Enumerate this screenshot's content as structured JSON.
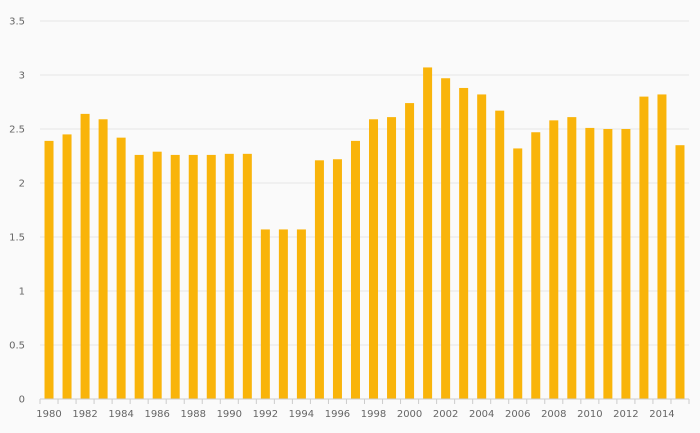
{
  "chart_data": {
    "type": "bar",
    "categories": [
      "1980",
      "1981",
      "1982",
      "1983",
      "1984",
      "1985",
      "1986",
      "1987",
      "1988",
      "1989",
      "1990",
      "1991",
      "1992",
      "1993",
      "1994",
      "1995",
      "1996",
      "1997",
      "1998",
      "1999",
      "2000",
      "2001",
      "2002",
      "2003",
      "2004",
      "2005",
      "2006",
      "2007",
      "2008",
      "2009",
      "2010",
      "2011",
      "2012",
      "2013",
      "2014",
      "2015"
    ],
    "values": [
      2.39,
      2.45,
      2.64,
      2.59,
      2.42,
      2.26,
      2.29,
      2.26,
      2.26,
      2.26,
      2.27,
      2.27,
      1.57,
      1.57,
      1.57,
      2.21,
      2.22,
      2.39,
      2.59,
      2.61,
      2.74,
      3.07,
      2.97,
      2.88,
      2.82,
      2.67,
      2.32,
      2.47,
      2.58,
      2.61,
      2.51,
      2.5,
      2.5,
      2.8,
      2.82,
      2.35
    ],
    "x_tick_labels": [
      "1980",
      "1982",
      "1984",
      "1986",
      "1988",
      "1990",
      "1992",
      "1994",
      "1996",
      "1998",
      "2000",
      "2002",
      "2004",
      "2006",
      "2008",
      "2010",
      "2012",
      "2014"
    ],
    "y_ticks": [
      "0",
      "0.5",
      "1",
      "1.5",
      "2",
      "2.5",
      "3",
      "3.5"
    ],
    "ylim": [
      0,
      3.5
    ],
    "title": "",
    "xlabel": "",
    "ylabel": "",
    "grid": true,
    "colors": {
      "bar": "#f9b40a",
      "grid": "#e6e6e6",
      "axis": "#cccccc"
    }
  }
}
